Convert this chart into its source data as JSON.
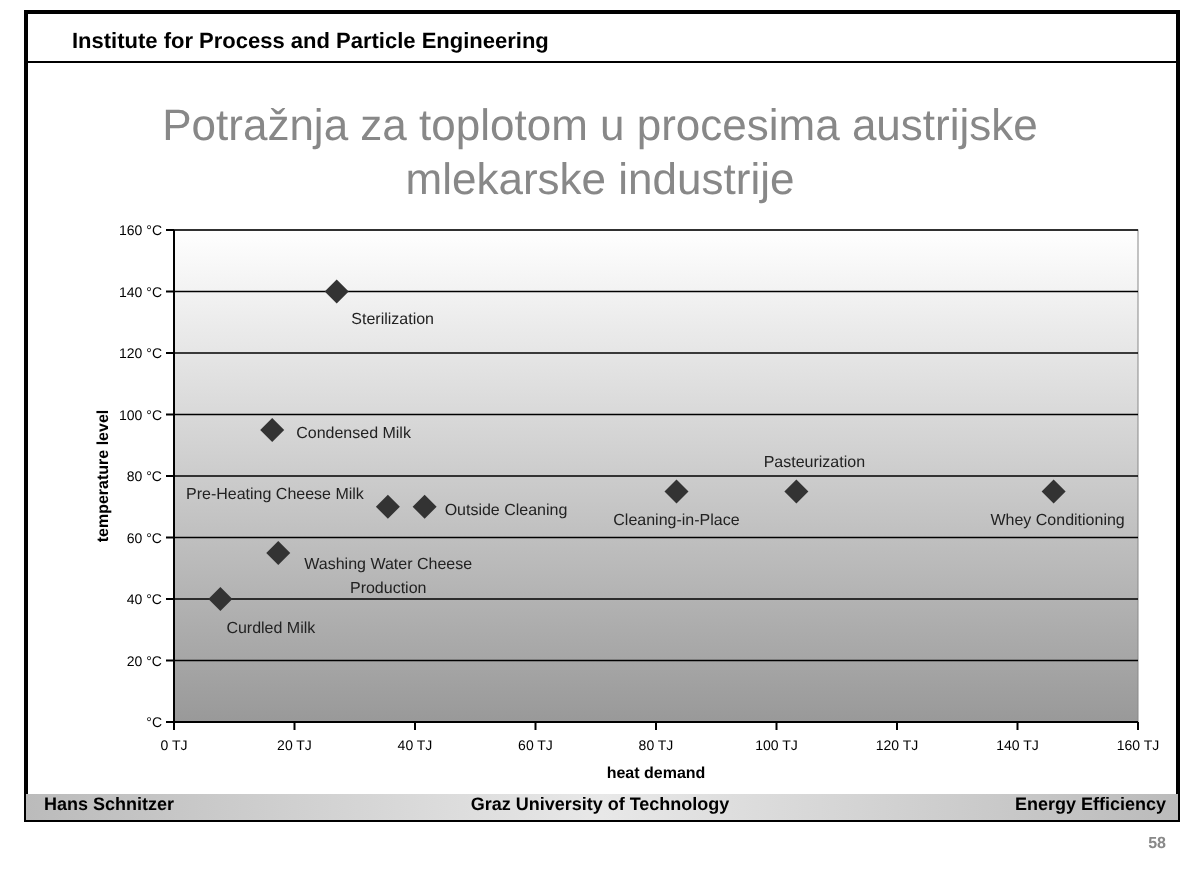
{
  "chart_data": {
    "type": "scatter",
    "title": "Potražnja za toplotom u procesima austrijske mlekarske industrije",
    "xlabel": "heat demand",
    "ylabel": "temperature level",
    "x": [
      27,
      16.3,
      35.5,
      41.6,
      17.3,
      7.7,
      83.4,
      103.3,
      146
    ],
    "series": [
      {
        "color": "#333333",
        "values": [
          140,
          95,
          70,
          70,
          55,
          40,
          75,
          75,
          75
        ]
      }
    ],
    "marker": "diamond",
    "grid": "y",
    "xlim": [
      0,
      160
    ],
    "ylim": [
      0,
      160
    ],
    "xticks": [
      {
        "value": 0,
        "label": "0 TJ"
      },
      {
        "value": 20,
        "label": "20 TJ"
      },
      {
        "value": 40,
        "label": "40 TJ"
      },
      {
        "value": 60,
        "label": "60 TJ"
      },
      {
        "value": 80,
        "label": "80 TJ"
      },
      {
        "value": 100,
        "label": "100 TJ"
      },
      {
        "value": 120,
        "label": "120 TJ"
      },
      {
        "value": 140,
        "label": "140 TJ"
      },
      {
        "value": 160,
        "label": "160 TJ"
      }
    ],
    "yticks": [
      {
        "value": 0,
        "label": "°C"
      },
      {
        "value": 20,
        "label": "20 °C"
      },
      {
        "value": 40,
        "label": "40 °C"
      },
      {
        "value": 60,
        "label": "60 °C"
      },
      {
        "value": 80,
        "label": "80 °C"
      },
      {
        "value": 100,
        "label": "100 °C"
      },
      {
        "value": 120,
        "label": "120 °C"
      },
      {
        "value": 140,
        "label": "140 °C"
      },
      {
        "value": 160,
        "label": "160 °C"
      }
    ],
    "annotations": [
      {
        "text": "Sterilization",
        "x": 27,
        "y": 140
      },
      {
        "text": "Condensed Milk",
        "x": 16.3,
        "y": 95
      },
      {
        "text": "Pre-Heating Cheese Milk",
        "x": 35.5,
        "y": 70
      },
      {
        "text": "Outside Cleaning",
        "x": 41.6,
        "y": 70
      },
      {
        "text": "Washing Water Cheese Production",
        "x": 17.3,
        "y": 55
      },
      {
        "text": "Curdled Milk",
        "x": 7.7,
        "y": 40
      },
      {
        "text": "Cleaning-in-Place",
        "x": 83.4,
        "y": 75
      },
      {
        "text": "Pasteurization",
        "x": 103.3,
        "y": 75
      },
      {
        "text": "Whey Conditioning",
        "x": 146,
        "y": 75
      },
      "Institute for Process and Particle Engineering",
      "Hans Schnitzer",
      "Graz University of Technology",
      "Energy Efficiency",
      "58"
    ]
  }
}
